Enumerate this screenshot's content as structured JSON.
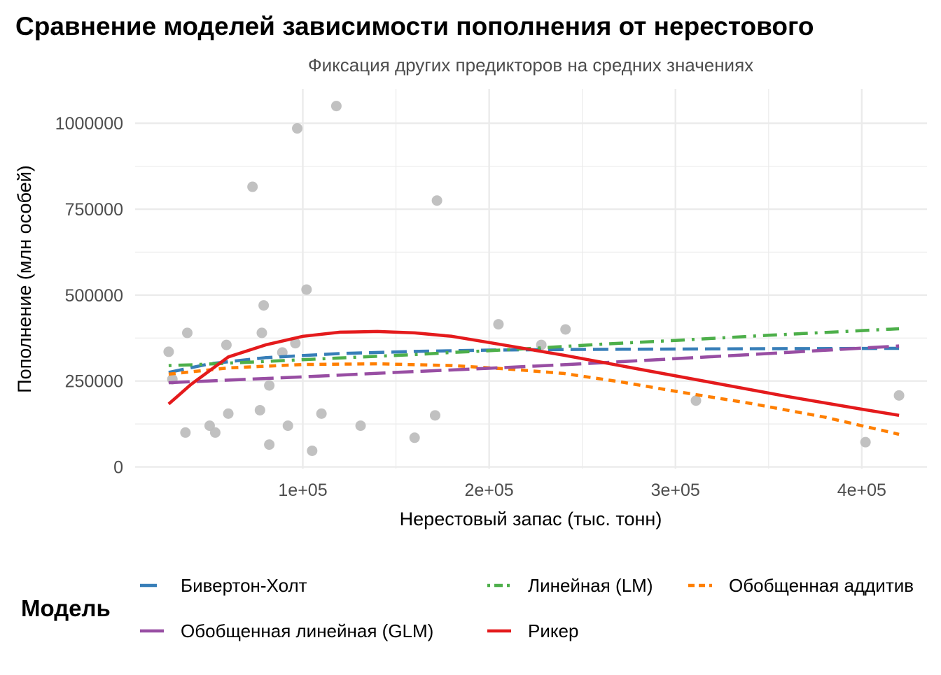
{
  "chart_data": {
    "type": "line",
    "title": "Сравнение моделей зависимости пополнения от нерестового",
    "subtitle": "Фиксация других предикторов на средних значениях",
    "xlabel": "Нерестовый запас (тыс. тонн)",
    "ylabel": "Пополнение (млн особей)",
    "xlim": [
      10000,
      435000
    ],
    "ylim": [
      -5000,
      1100000
    ],
    "x_ticks": [
      100000,
      200000,
      300000,
      400000
    ],
    "x_tick_labels": [
      "1e+05",
      "2e+05",
      "3e+05",
      "4e+05"
    ],
    "y_ticks": [
      0,
      250000,
      500000,
      750000,
      1000000
    ],
    "y_tick_labels": [
      "0",
      "250000",
      "500000",
      "750000",
      "1000000"
    ],
    "grid": true,
    "legend": {
      "title": "Модель",
      "position": "bottom",
      "entries": [
        {
          "label": "Бивертон-Холт",
          "color": "#377EB8",
          "dash": "dashed"
        },
        {
          "label": "Линейная (LM)",
          "color": "#4DAF4A",
          "dash": "dotdash"
        },
        {
          "label": "Обобщенная аддитив",
          "color": "#FF7F00",
          "dash": "shortdash"
        },
        {
          "label": "Обобщенная линейная (GLM)",
          "color": "#984EA3",
          "dash": "longdash"
        },
        {
          "label": "Рикер",
          "color": "#E41A1C",
          "dash": "solid"
        }
      ]
    },
    "points": {
      "color": "#BEBEBE",
      "x": [
        28000,
        30000,
        37000,
        38000,
        50000,
        53000,
        59000,
        60000,
        73000,
        77000,
        78000,
        79000,
        82000,
        82000,
        89000,
        92000,
        96000,
        97000,
        102000,
        105000,
        110000,
        118000,
        131000,
        160000,
        171000,
        172000,
        205000,
        228000,
        241000,
        311000,
        402000,
        420000
      ],
      "y": [
        335000,
        255000,
        100000,
        390000,
        120000,
        100000,
        355000,
        155000,
        815000,
        165000,
        390000,
        470000,
        65000,
        237000,
        333000,
        120000,
        360000,
        985000,
        516000,
        47000,
        155000,
        1050000,
        120000,
        85000,
        150000,
        775000,
        415000,
        355000,
        400000,
        193000,
        72000,
        208000
      ]
    },
    "series": [
      {
        "name": "Бивертон-Холт",
        "color": "#377EB8",
        "x": [
          28000,
          50000,
          80000,
          120000,
          160000,
          200000,
          250000,
          300000,
          350000,
          420000
        ],
        "y": [
          275000,
          300000,
          318000,
          330000,
          336000,
          340000,
          342000,
          343000,
          344000,
          345000
        ]
      },
      {
        "name": "Линейная (LM)",
        "color": "#4DAF4A",
        "x": [
          28000,
          40000,
          60000,
          80000,
          100000,
          120000,
          140000,
          160000,
          180000,
          200000,
          230000,
          260000,
          300000,
          350000,
          420000
        ],
        "y": [
          295000,
          297000,
          302000,
          307000,
          312000,
          317000,
          322000,
          327000,
          333000,
          338000,
          347000,
          357000,
          368000,
          383000,
          402000
        ]
      },
      {
        "name": "Обобщенная аддитив",
        "color": "#FF7F00",
        "x": [
          28000,
          60000,
          100000,
          140000,
          180000,
          210000,
          240000,
          270000,
          300000,
          340000,
          380000,
          420000
        ],
        "y": [
          270000,
          288000,
          298000,
          300000,
          295000,
          285000,
          272000,
          248000,
          220000,
          185000,
          145000,
          95000
        ]
      },
      {
        "name": "Обобщенная линейная (GLM)",
        "color": "#984EA3",
        "x": [
          28000,
          100000,
          150000,
          200000,
          250000,
          300000,
          350000,
          420000
        ],
        "y": [
          245000,
          262000,
          275000,
          287000,
          300000,
          315000,
          330000,
          352000
        ]
      },
      {
        "name": "Рикер",
        "color": "#E41A1C",
        "x": [
          28000,
          40000,
          60000,
          80000,
          100000,
          120000,
          140000,
          160000,
          180000,
          200000,
          240000,
          280000,
          320000,
          360000,
          400000,
          420000
        ],
        "y": [
          183000,
          240000,
          320000,
          355000,
          380000,
          392000,
          394000,
          390000,
          380000,
          362000,
          325000,
          285000,
          245000,
          205000,
          168000,
          150000
        ]
      }
    ]
  }
}
